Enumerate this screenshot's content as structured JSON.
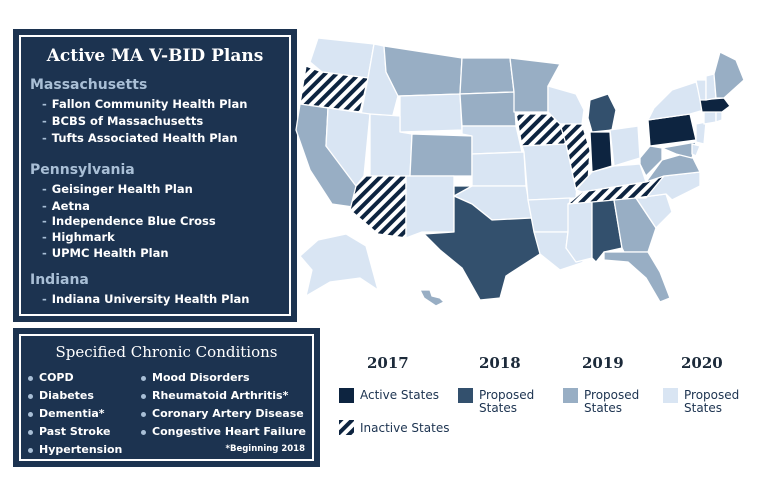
{
  "plans_panel": {
    "title": "Active MA V-BID Plans",
    "groups": [
      {
        "state": "Massachusetts",
        "plans": [
          "Fallon Community Health Plan",
          "BCBS of Massachusetts",
          "Tufts Associated Health Plan"
        ]
      },
      {
        "state": "Pennsylvania",
        "plans": [
          "Geisinger Health Plan",
          "Aetna",
          "Independence Blue Cross",
          "Highmark",
          "UPMC Health Plan"
        ]
      },
      {
        "state": "Indiana",
        "plans": [
          "Indiana University Health Plan"
        ]
      }
    ]
  },
  "conditions_panel": {
    "title": "Specified Chronic Conditions",
    "left": [
      "COPD",
      "Diabetes",
      "Dementia*",
      "Past Stroke",
      "Hypertension"
    ],
    "right": [
      "Mood Disorders",
      "Rheumatoid Arthritis*",
      "Coronary Artery Disease",
      "Congestive Heart Failure"
    ],
    "footnote": "*Beginning 2018"
  },
  "legend": {
    "years": [
      "2017",
      "2018",
      "2019",
      "2020"
    ],
    "items": [
      {
        "label": "Active States",
        "color": "#0d2440"
      },
      {
        "label": "Proposed\nStates",
        "color": "#33506d"
      },
      {
        "label": "Proposed\nStates",
        "color": "#98aec4"
      },
      {
        "label": "Proposed\nStates",
        "color": "#d9e5f3"
      }
    ],
    "inactive_label": "Inactive States"
  },
  "map_colors": {
    "active": "#0d2440",
    "proposed_2018": "#33506d",
    "proposed_2019": "#98aec4",
    "proposed_2020": "#d9e5f3",
    "border": "#ffffff"
  }
}
